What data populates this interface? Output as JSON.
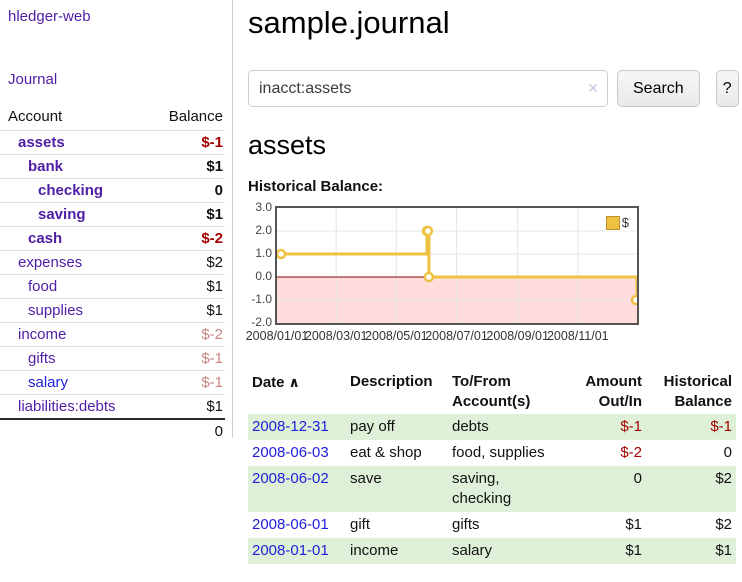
{
  "app": {
    "title": "hledger-web",
    "nav_journal": "Journal"
  },
  "sidebar": {
    "headers": [
      "Account",
      "Balance"
    ],
    "rows": [
      {
        "label": "assets",
        "indent": 1,
        "bold": true,
        "balance": "$-1",
        "neg": "strong",
        "blue": false
      },
      {
        "label": "bank",
        "indent": 2,
        "bold": true,
        "balance": "$1",
        "neg": "none",
        "blue": false
      },
      {
        "label": "checking",
        "indent": 3,
        "bold": true,
        "balance": "0",
        "neg": "none",
        "blue": false
      },
      {
        "label": "saving",
        "indent": 3,
        "bold": true,
        "balance": "$1",
        "neg": "none",
        "blue": false
      },
      {
        "label": "cash",
        "indent": 2,
        "bold": true,
        "balance": "$-2",
        "neg": "strong",
        "blue": false
      },
      {
        "label": "expenses",
        "indent": 1,
        "bold": false,
        "balance": "$2",
        "neg": "none",
        "blue": false
      },
      {
        "label": "food",
        "indent": 2,
        "bold": false,
        "balance": "$1",
        "neg": "none",
        "blue": false
      },
      {
        "label": "supplies",
        "indent": 2,
        "bold": false,
        "balance": "$1",
        "neg": "none",
        "blue": false
      },
      {
        "label": "income",
        "indent": 1,
        "bold": false,
        "balance": "$-2",
        "neg": "soft",
        "blue": false
      },
      {
        "label": "gifts",
        "indent": 2,
        "bold": false,
        "balance": "$-1",
        "neg": "soft",
        "blue": false
      },
      {
        "label": "salary",
        "indent": 2,
        "bold": false,
        "balance": "$-1",
        "neg": "soft",
        "blue": true
      },
      {
        "label": "liabilities:debts",
        "indent": 1,
        "bold": false,
        "balance": "$1",
        "neg": "none",
        "blue": false
      }
    ],
    "total": "0"
  },
  "main": {
    "title": "sample.journal",
    "search": {
      "value": "inacct:assets",
      "clear_icon": "✕",
      "button_label": "Search",
      "help_label": "?"
    },
    "account_heading": "assets",
    "chart_label": "Historical Balance:"
  },
  "chart_data": {
    "type": "line",
    "step": true,
    "title": "Historical Balance:",
    "series": [
      {
        "name": "$",
        "color": "#edc240",
        "points": [
          [
            "2008-01-01",
            1
          ],
          [
            "2008-06-01",
            2
          ],
          [
            "2008-06-02",
            2
          ],
          [
            "2008-06-03",
            0
          ],
          [
            "2008-12-31",
            -1
          ]
        ]
      }
    ],
    "x_ticks": [
      "2008/01/01",
      "2008/03/01",
      "2008/05/01",
      "2008/07/01",
      "2008/09/01",
      "2008/11/01"
    ],
    "y_ticks": [
      3.0,
      2.0,
      1.0,
      0.0,
      -1.0,
      -2.0
    ],
    "ylim": [
      -2,
      3
    ],
    "x_range_days": 365,
    "grid": true,
    "legend": {
      "label": "$",
      "position": "top-right"
    },
    "colors": {
      "negative_region": "#ffdddd",
      "zero_line": "#8b0000",
      "gridline": "#e6e6e6",
      "border": "#545454"
    }
  },
  "register": {
    "headers": [
      "Date",
      "Description",
      "To/From Account(s)",
      "Amount Out/In",
      "Historical Balance"
    ],
    "sort_icon": "∧",
    "rows": [
      {
        "date": "2008-12-31",
        "description": "pay off",
        "accounts": "debts",
        "amount": "$-1",
        "amount_neg": true,
        "balance": "$-1",
        "balance_neg": true
      },
      {
        "date": "2008-06-03",
        "description": "eat & shop",
        "accounts": "food, supplies",
        "amount": "$-2",
        "amount_neg": true,
        "balance": "0",
        "balance_neg": false
      },
      {
        "date": "2008-06-02",
        "description": "save",
        "accounts": "saving, checking",
        "amount": "0",
        "amount_neg": false,
        "balance": "$2",
        "balance_neg": false
      },
      {
        "date": "2008-06-01",
        "description": "gift",
        "accounts": "gifts",
        "amount": "$1",
        "amount_neg": false,
        "balance": "$2",
        "balance_neg": false
      },
      {
        "date": "2008-01-01",
        "description": "income",
        "accounts": "salary",
        "amount": "$1",
        "amount_neg": false,
        "balance": "$1",
        "balance_neg": false
      }
    ]
  }
}
